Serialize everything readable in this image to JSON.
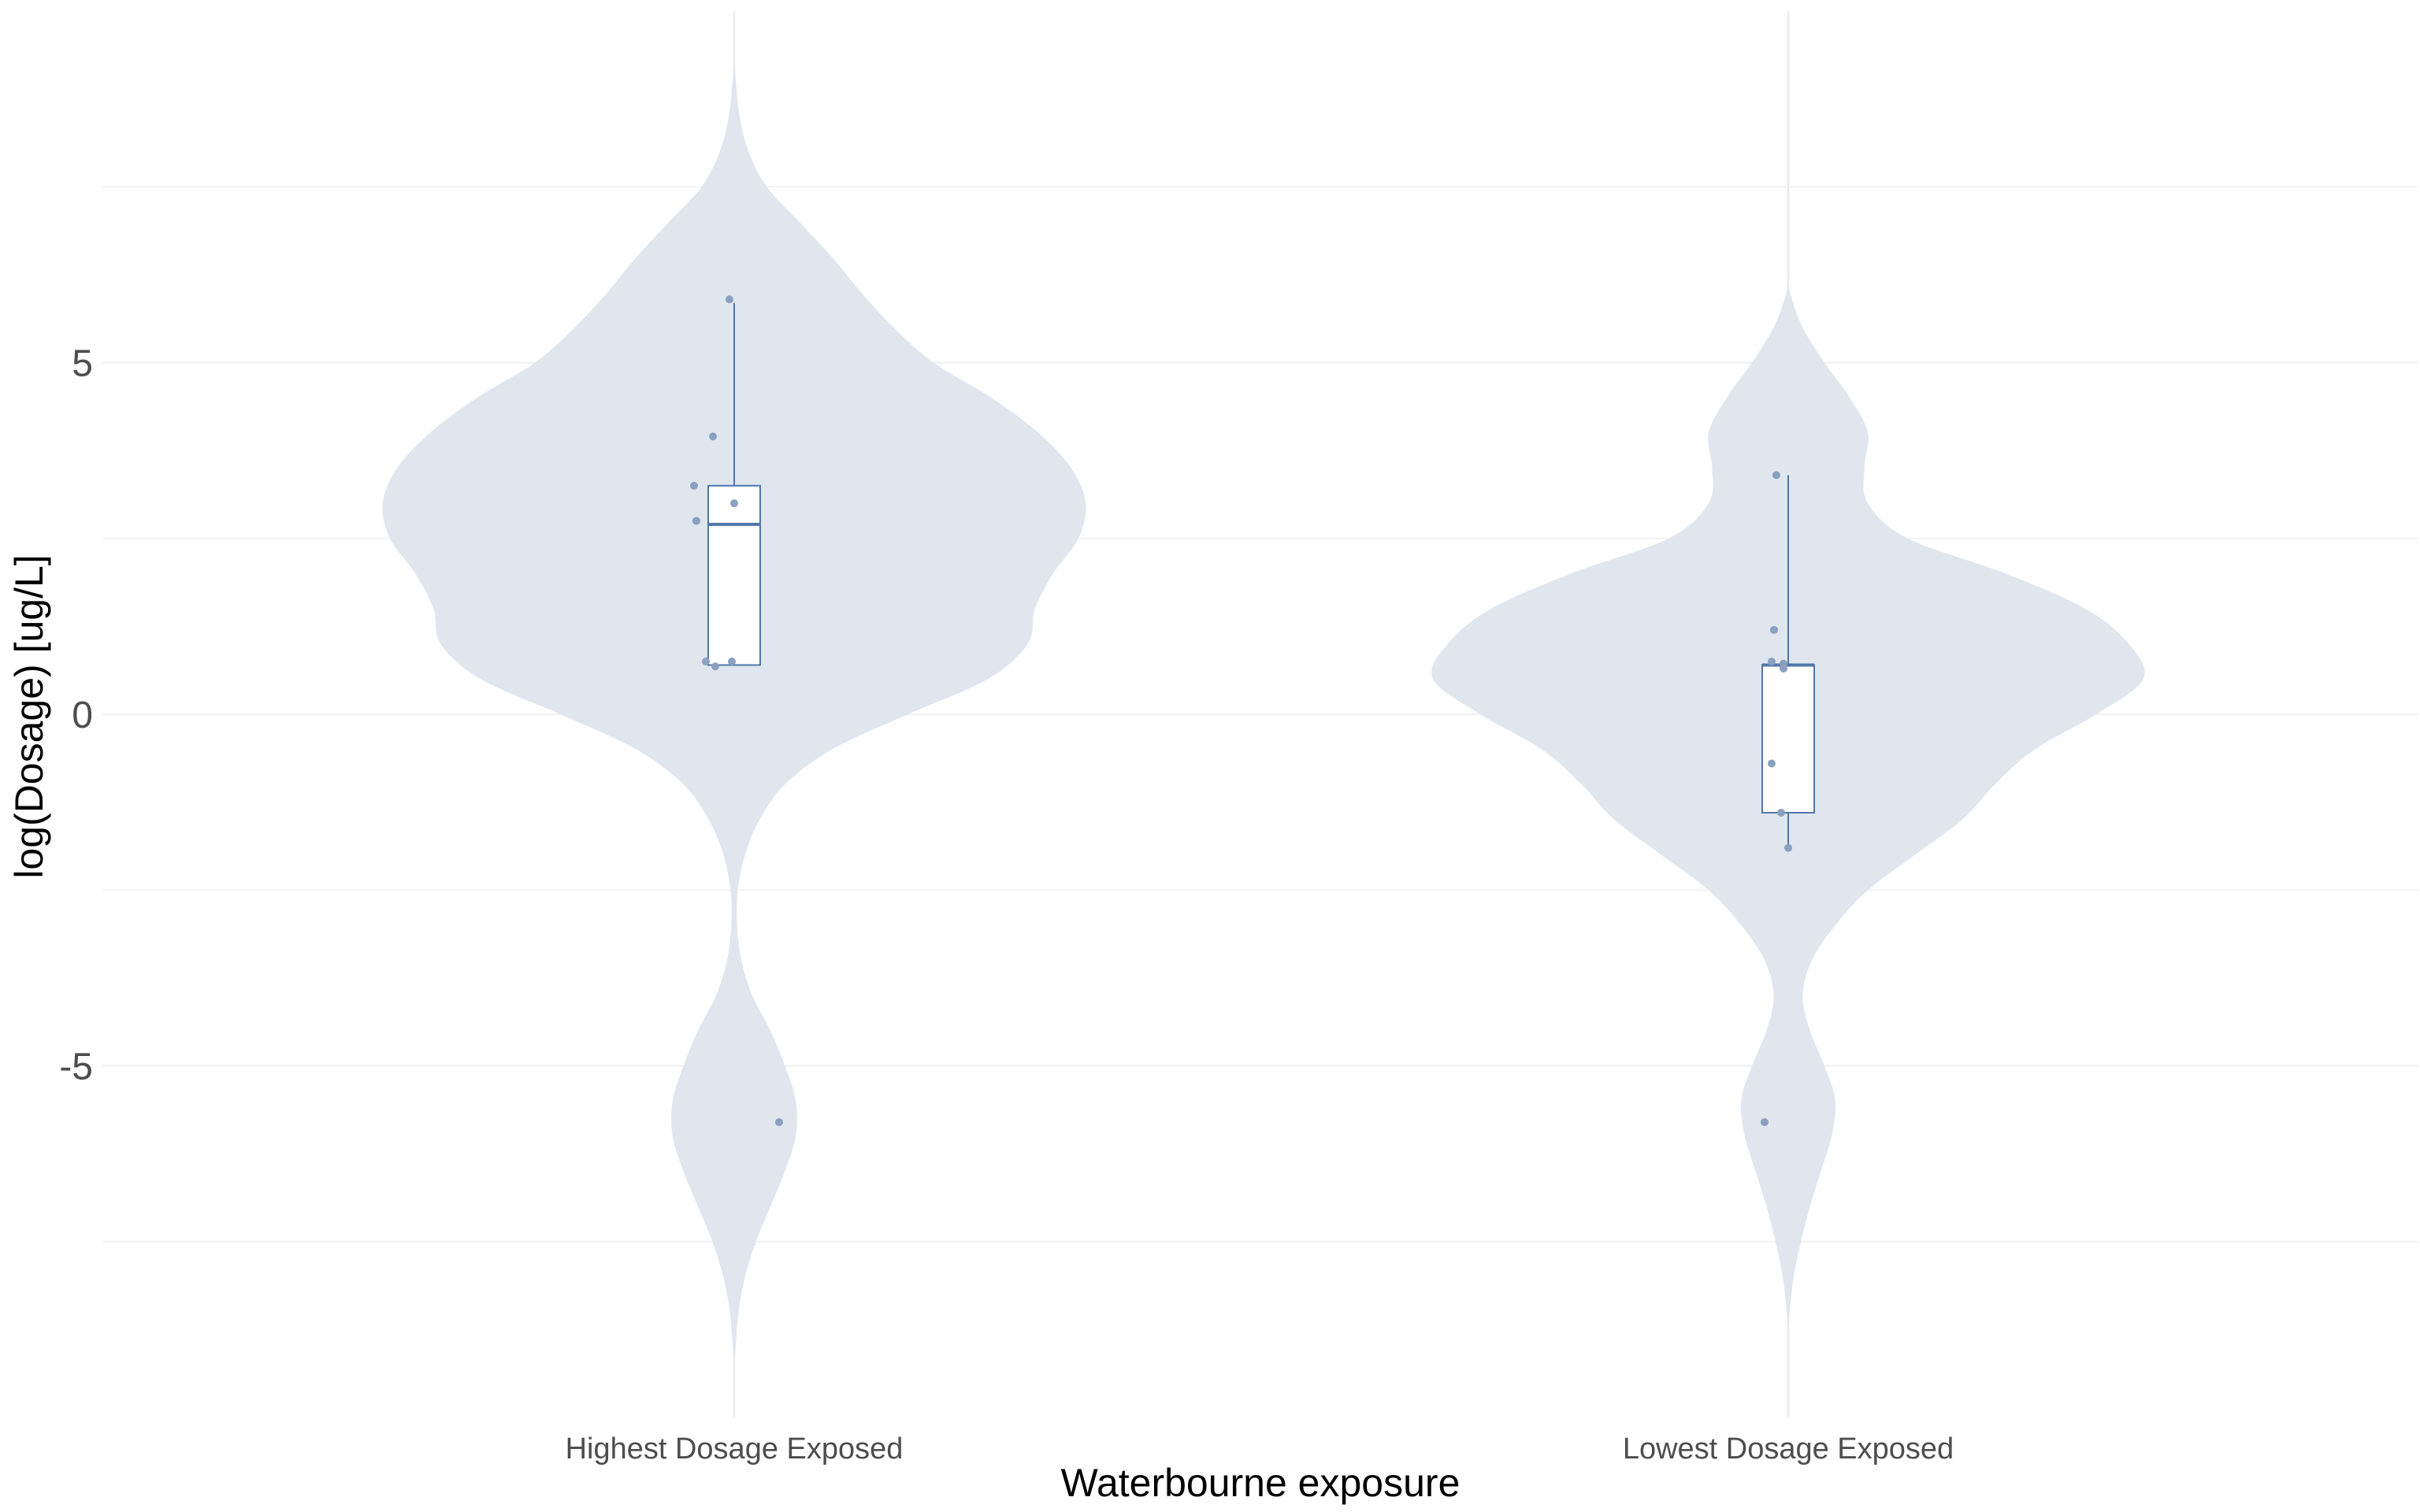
{
  "chart_data": {
    "type": "violin",
    "title": "",
    "xlabel": "Waterbourne exposure",
    "ylabel": "log(Dosage) [ug/L]",
    "ylim": [
      -10.0,
      10.0
    ],
    "yticks": [
      {
        "value": 5,
        "label": "5"
      },
      {
        "value": 0,
        "label": "0"
      },
      {
        "value": -5,
        "label": "-5"
      }
    ],
    "minor_gridlines": [
      7.5,
      2.5,
      -2.5,
      -7.5
    ],
    "grid": true,
    "categories": [
      "Highest Dosage Exposed",
      "Lowest Dosage Exposed"
    ],
    "colors": {
      "violin_fill": "#dfe6ee",
      "box_line": "#4f78a8",
      "point": "#8aa0bf",
      "grid": "#ebebeb",
      "axis_text": "#4d4d4d",
      "title_text": "#000000"
    },
    "groups": [
      {
        "name": "Highest Dosage Exposed",
        "points": [
          {
            "x": -0.02,
            "y": 5.9
          },
          {
            "x": -0.09,
            "y": 3.95
          },
          {
            "x": -0.17,
            "y": 3.25
          },
          {
            "x": -0.16,
            "y": 2.75
          },
          {
            "x": 0.0,
            "y": 3.0
          },
          {
            "x": -0.12,
            "y": 0.75
          },
          {
            "x": -0.08,
            "y": 0.68
          },
          {
            "x": -0.01,
            "y": 0.75
          },
          {
            "x": 0.19,
            "y": -5.8
          }
        ],
        "box": {
          "whisker_low": 0.7,
          "q1": 0.7,
          "median": 2.7,
          "q3": 3.25,
          "whisker_high": 5.85
        },
        "density": [
          {
            "y": 9.3,
            "w": 0.0
          },
          {
            "y": 9.0,
            "w": 0.005
          },
          {
            "y": 8.5,
            "w": 0.015
          },
          {
            "y": 8.0,
            "w": 0.04
          },
          {
            "y": 7.5,
            "w": 0.09
          },
          {
            "y": 7.0,
            "w": 0.18
          },
          {
            "y": 6.5,
            "w": 0.27
          },
          {
            "y": 6.0,
            "w": 0.35
          },
          {
            "y": 5.5,
            "w": 0.44
          },
          {
            "y": 5.0,
            "w": 0.55
          },
          {
            "y": 4.5,
            "w": 0.71
          },
          {
            "y": 4.0,
            "w": 0.84
          },
          {
            "y": 3.5,
            "w": 0.93
          },
          {
            "y": 3.0,
            "w": 0.97
          },
          {
            "y": 2.5,
            "w": 0.95
          },
          {
            "y": 2.0,
            "w": 0.88
          },
          {
            "y": 1.5,
            "w": 0.83
          },
          {
            "y": 1.0,
            "w": 0.81
          },
          {
            "y": 0.5,
            "w": 0.7
          },
          {
            "y": 0.0,
            "w": 0.48
          },
          {
            "y": -0.5,
            "w": 0.27
          },
          {
            "y": -1.0,
            "w": 0.14
          },
          {
            "y": -1.5,
            "w": 0.07
          },
          {
            "y": -2.0,
            "w": 0.03
          },
          {
            "y": -2.5,
            "w": 0.01
          },
          {
            "y": -3.0,
            "w": 0.008
          },
          {
            "y": -3.5,
            "w": 0.02
          },
          {
            "y": -4.0,
            "w": 0.05
          },
          {
            "y": -4.5,
            "w": 0.1
          },
          {
            "y": -5.0,
            "w": 0.14
          },
          {
            "y": -5.5,
            "w": 0.17
          },
          {
            "y": -6.0,
            "w": 0.17
          },
          {
            "y": -6.5,
            "w": 0.14
          },
          {
            "y": -7.0,
            "w": 0.1
          },
          {
            "y": -7.5,
            "w": 0.06
          },
          {
            "y": -8.0,
            "w": 0.03
          },
          {
            "y": -8.5,
            "w": 0.012
          },
          {
            "y": -9.0,
            "w": 0.004
          },
          {
            "y": -9.25,
            "w": 0.0
          }
        ]
      },
      {
        "name": "Lowest Dosage Exposed",
        "points": [
          {
            "x": -0.05,
            "y": 3.4
          },
          {
            "x": -0.06,
            "y": 1.2
          },
          {
            "x": -0.07,
            "y": 0.75
          },
          {
            "x": -0.02,
            "y": 0.72
          },
          {
            "x": -0.02,
            "y": 0.65
          },
          {
            "x": -0.07,
            "y": -0.7
          },
          {
            "x": -0.03,
            "y": -1.4
          },
          {
            "x": 0.0,
            "y": -1.9
          },
          {
            "x": -0.1,
            "y": -5.8
          }
        ],
        "box": {
          "whisker_low": -1.9,
          "q1": -1.4,
          "median": 0.7,
          "q3": 0.7,
          "whisker_high": 3.4
        },
        "density": [
          {
            "y": 6.3,
            "w": 0.0
          },
          {
            "y": 6.0,
            "w": 0.005
          },
          {
            "y": 5.5,
            "w": 0.04
          },
          {
            "y": 5.0,
            "w": 0.1
          },
          {
            "y": 4.5,
            "w": 0.17
          },
          {
            "y": 4.0,
            "w": 0.22
          },
          {
            "y": 3.5,
            "w": 0.21
          },
          {
            "y": 3.0,
            "w": 0.22
          },
          {
            "y": 2.5,
            "w": 0.33
          },
          {
            "y": 2.0,
            "w": 0.6
          },
          {
            "y": 1.5,
            "w": 0.82
          },
          {
            "y": 1.0,
            "w": 0.94
          },
          {
            "y": 0.5,
            "w": 0.98
          },
          {
            "y": 0.0,
            "w": 0.85
          },
          {
            "y": -0.5,
            "w": 0.68
          },
          {
            "y": -1.0,
            "w": 0.57
          },
          {
            "y": -1.5,
            "w": 0.48
          },
          {
            "y": -2.0,
            "w": 0.35
          },
          {
            "y": -2.5,
            "w": 0.22
          },
          {
            "y": -3.0,
            "w": 0.13
          },
          {
            "y": -3.5,
            "w": 0.065
          },
          {
            "y": -4.0,
            "w": 0.04
          },
          {
            "y": -4.5,
            "w": 0.06
          },
          {
            "y": -5.0,
            "w": 0.1
          },
          {
            "y": -5.5,
            "w": 0.13
          },
          {
            "y": -6.0,
            "w": 0.12
          },
          {
            "y": -6.5,
            "w": 0.09
          },
          {
            "y": -7.0,
            "w": 0.06
          },
          {
            "y": -7.5,
            "w": 0.035
          },
          {
            "y": -8.0,
            "w": 0.015
          },
          {
            "y": -8.5,
            "w": 0.004
          },
          {
            "y": -8.7,
            "w": 0.0
          }
        ]
      }
    ]
  }
}
